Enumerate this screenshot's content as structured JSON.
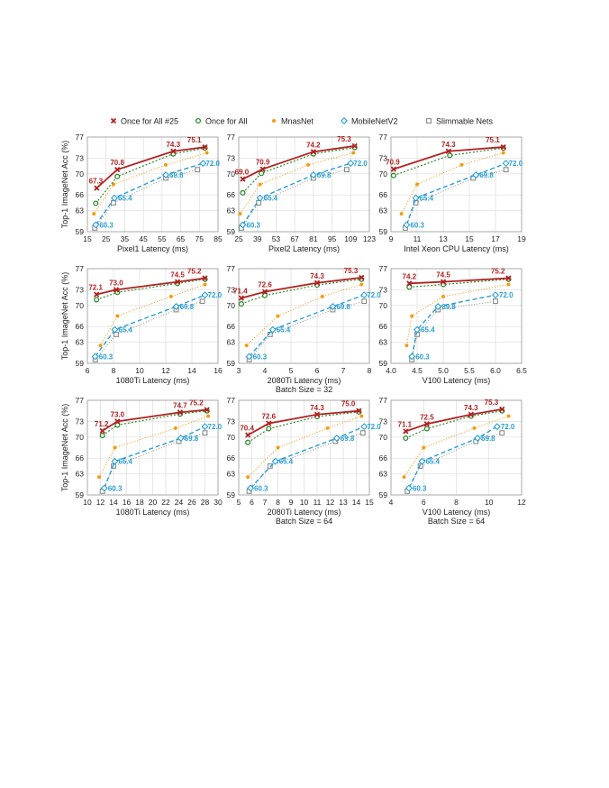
{
  "legend": [
    {
      "name": "Once for All #25",
      "color": "#b22222",
      "marker": "x"
    },
    {
      "name": "Once for All",
      "color": "#2e8b2e",
      "marker": "circle"
    },
    {
      "name": "MnasNet",
      "color": "#f39c12",
      "marker": "dot"
    },
    {
      "name": "MobileNetV2",
      "color": "#2aa0d4",
      "marker": "diamond"
    },
    {
      "name": "Slimmable Nets",
      "color": "#8c8c8c",
      "marker": "square"
    }
  ],
  "y_axis_label": "Top-1 ImageNet Acc (%)",
  "chart_data": [
    {
      "type": "line",
      "xlabel": "Pixel1 Latency (ms)",
      "sublabel": "",
      "xlim": [
        15,
        85
      ],
      "xticks": [
        15,
        25,
        35,
        45,
        55,
        65,
        75,
        85
      ],
      "ylim": [
        59,
        77
      ],
      "yticks": [
        59,
        63,
        66,
        70,
        73,
        77
      ],
      "series": [
        {
          "name": "Once for All #25",
          "x": [
            20,
            31,
            61,
            78
          ],
          "y": [
            67.3,
            70.8,
            74.3,
            75.1
          ],
          "labels": [
            "67.3",
            "70.8",
            "74.3",
            "75.1"
          ]
        },
        {
          "name": "Once for All",
          "x": [
            19.5,
            31,
            61,
            78
          ],
          "y": [
            64.4,
            69.5,
            73.8,
            74.9
          ],
          "labels": []
        },
        {
          "name": "MnasNet",
          "x": [
            18.5,
            29,
            57,
            79
          ],
          "y": [
            62.4,
            68.0,
            71.7,
            74.0
          ],
          "labels": []
        },
        {
          "name": "MobileNetV2",
          "x": [
            19.5,
            29.5,
            57,
            77
          ],
          "y": [
            60.3,
            65.4,
            69.8,
            72.0
          ],
          "labels": [
            "60.3",
            "65.4",
            "69.8",
            "72.0"
          ]
        },
        {
          "name": "Slimmable Nets",
          "x": [
            19,
            29,
            57,
            74
          ],
          "y": [
            59.7,
            64.5,
            69.2,
            70.8
          ],
          "labels": []
        }
      ]
    },
    {
      "type": "line",
      "xlabel": "Pixel2 Latency (ms)",
      "sublabel": "",
      "xlim": [
        25,
        123
      ],
      "xticks": [
        25,
        39,
        53,
        67,
        81,
        95,
        109,
        123
      ],
      "ylim": [
        59,
        77
      ],
      "yticks": [
        59,
        63,
        66,
        70,
        73,
        77
      ],
      "series": [
        {
          "name": "Once for All #25",
          "x": [
            28,
            43,
            81,
            112
          ],
          "y": [
            69.0,
            70.9,
            74.2,
            75.3
          ],
          "labels": [
            "69.0",
            "70.9",
            "74.2",
            "75.3"
          ]
        },
        {
          "name": "Once for All",
          "x": [
            28,
            42,
            81,
            112
          ],
          "y": [
            66.4,
            70.1,
            73.8,
            75.0
          ],
          "labels": []
        },
        {
          "name": "MnasNet",
          "x": [
            26,
            41,
            77,
            111
          ],
          "y": [
            62.4,
            68.0,
            71.7,
            74.0
          ],
          "labels": []
        },
        {
          "name": "MobileNetV2",
          "x": [
            28,
            41,
            81,
            109
          ],
          "y": [
            60.3,
            65.4,
            69.8,
            72.0
          ],
          "labels": [
            "60.3",
            "65.4",
            "69.8",
            "72.0"
          ]
        },
        {
          "name": "Slimmable Nets",
          "x": [
            27,
            40,
            81,
            106
          ],
          "y": [
            59.7,
            64.5,
            69.2,
            70.8
          ],
          "labels": []
        }
      ]
    },
    {
      "type": "line",
      "xlabel": "Intel Xeon CPU Latency (ms)",
      "sublabel": "",
      "xlim": [
        9,
        19
      ],
      "xticks": [
        9,
        11,
        13,
        15,
        17,
        19
      ],
      "ylim": [
        59,
        77
      ],
      "yticks": [
        59,
        63,
        66,
        70,
        73,
        77
      ],
      "series": [
        {
          "name": "Once for All #25",
          "x": [
            9.2,
            13.4,
            17.6
          ],
          "y": [
            70.9,
            74.3,
            75.1
          ],
          "labels": [
            "70.9",
            "74.3",
            "75.1"
          ]
        },
        {
          "name": "Once for All",
          "x": [
            9.2,
            13.5,
            17.6
          ],
          "y": [
            69.7,
            73.5,
            74.9
          ],
          "labels": []
        },
        {
          "name": "MnasNet",
          "x": [
            9.8,
            11.0,
            14.4,
            17.6
          ],
          "y": [
            62.4,
            68.0,
            71.7,
            74.0
          ],
          "labels": []
        },
        {
          "name": "MobileNetV2",
          "x": [
            10.2,
            10.9,
            15.5,
            17.8
          ],
          "y": [
            60.3,
            65.4,
            69.8,
            72.0
          ],
          "labels": [
            "60.3",
            "65.4",
            "69.8",
            "72.0"
          ]
        },
        {
          "name": "Slimmable Nets",
          "x": [
            10.1,
            10.9,
            15.3,
            17.8
          ],
          "y": [
            59.7,
            64.5,
            69.2,
            70.8
          ],
          "labels": []
        }
      ]
    },
    {
      "type": "line",
      "xlabel": "1080Ti Latency (ms)",
      "sublabel": "",
      "xlim": [
        6,
        16
      ],
      "xticks": [
        6,
        8,
        10,
        12,
        14,
        16
      ],
      "ylim": [
        59,
        77
      ],
      "yticks": [
        59,
        63,
        66,
        70,
        73,
        77
      ],
      "series": [
        {
          "name": "Once for All #25",
          "x": [
            6.7,
            8.2,
            12.9,
            15.0
          ],
          "y": [
            72.1,
            73.0,
            74.5,
            75.2
          ],
          "labels": [
            "72.1",
            "73.0",
            "74.5",
            "75.2"
          ]
        },
        {
          "name": "Once for All",
          "x": [
            6.7,
            8.3,
            12.9,
            15.0
          ],
          "y": [
            71.1,
            72.5,
            74.2,
            75.0
          ],
          "labels": []
        },
        {
          "name": "MnasNet",
          "x": [
            7.0,
            8.3,
            12.4,
            15.0
          ],
          "y": [
            62.4,
            68.0,
            71.7,
            74.0
          ],
          "labels": []
        },
        {
          "name": "MobileNetV2",
          "x": [
            6.6,
            8.1,
            12.8,
            15.0
          ],
          "y": [
            60.3,
            65.4,
            69.8,
            72.0
          ],
          "labels": [
            "60.3",
            "65.4",
            "69.8",
            "72.0"
          ]
        },
        {
          "name": "Slimmable Nets",
          "x": [
            6.6,
            8.2,
            12.8,
            14.8
          ],
          "y": [
            59.7,
            64.5,
            69.2,
            70.8
          ],
          "labels": []
        }
      ]
    },
    {
      "type": "line",
      "xlabel": "2080Ti Latency (ms)",
      "sublabel": "Batch Size = 32",
      "xlim": [
        3,
        8
      ],
      "xticks": [
        3,
        4,
        5,
        6,
        7,
        8
      ],
      "ylim": [
        59,
        77
      ],
      "yticks": [
        59,
        63,
        66,
        70,
        73,
        77
      ],
      "series": [
        {
          "name": "Once for All #25",
          "x": [
            3.1,
            4.0,
            6.0,
            7.7
          ],
          "y": [
            71.4,
            72.6,
            74.3,
            75.3
          ],
          "labels": [
            "71.4",
            "72.6",
            "74.3",
            "75.3"
          ]
        },
        {
          "name": "Once for All",
          "x": [
            3.1,
            4.0,
            6.0,
            7.7
          ],
          "y": [
            70.3,
            71.9,
            73.9,
            75.0
          ],
          "labels": []
        },
        {
          "name": "MnasNet",
          "x": [
            3.3,
            4.5,
            6.2,
            7.7
          ],
          "y": [
            62.4,
            68.0,
            71.7,
            74.0
          ],
          "labels": []
        },
        {
          "name": "MobileNetV2",
          "x": [
            3.4,
            4.3,
            6.6,
            7.8
          ],
          "y": [
            60.3,
            65.4,
            69.8,
            72.0
          ],
          "labels": [
            "60.3",
            "65.4",
            "69.8",
            "72.0"
          ]
        },
        {
          "name": "Slimmable Nets",
          "x": [
            3.4,
            4.2,
            6.6,
            7.8
          ],
          "y": [
            59.7,
            64.5,
            69.2,
            70.8
          ],
          "labels": []
        }
      ]
    },
    {
      "type": "line",
      "xlabel": "V100 Latency (ms)",
      "sublabel": "",
      "xlim": [
        4.0,
        6.5
      ],
      "xticks": [
        "4.0",
        "4.5",
        "5.0",
        "5.5",
        "6.0",
        "6.5"
      ],
      "ylim": [
        59,
        77
      ],
      "yticks": [
        59,
        63,
        66,
        70,
        73,
        77
      ],
      "series": [
        {
          "name": "Once for All #25",
          "x": [
            4.35,
            5.0,
            6.25
          ],
          "y": [
            74.2,
            74.5,
            75.2
          ],
          "labels": [
            "74.2",
            "74.5",
            "75.2"
          ]
        },
        {
          "name": "Once for All",
          "x": [
            4.35,
            5.0,
            6.25
          ],
          "y": [
            73.5,
            74.0,
            75.0
          ],
          "labels": []
        },
        {
          "name": "MnasNet",
          "x": [
            4.3,
            4.4,
            5.0,
            6.25
          ],
          "y": [
            62.4,
            68.0,
            71.7,
            74.0
          ],
          "labels": []
        },
        {
          "name": "MobileNetV2",
          "x": [
            4.4,
            4.5,
            4.9,
            6.0
          ],
          "y": [
            60.3,
            65.4,
            69.8,
            72.0
          ],
          "labels": [
            "60.3",
            "65.4",
            "69.8",
            "72.0"
          ]
        },
        {
          "name": "Slimmable Nets",
          "x": [
            4.4,
            4.5,
            4.9,
            6.0
          ],
          "y": [
            59.7,
            64.5,
            69.2,
            70.8
          ],
          "labels": []
        }
      ]
    },
    {
      "type": "line",
      "xlabel": "1080Ti Latency (ms)",
      "sublabel": "",
      "xlim": [
        10,
        30
      ],
      "xticks": [
        10,
        12,
        14,
        16,
        18,
        20,
        22,
        24,
        26,
        28,
        30
      ],
      "ylim": [
        59,
        77
      ],
      "yticks": [
        59,
        63,
        66,
        70,
        73,
        77
      ],
      "series": [
        {
          "name": "Once for All #25",
          "x": [
            12.3,
            14.6,
            24.2,
            28.3
          ],
          "y": [
            71.2,
            73.0,
            74.7,
            75.2
          ],
          "labels": [
            "71.2",
            "73.0",
            "74.7",
            "75.2"
          ]
        },
        {
          "name": "Once for All",
          "x": [
            12.3,
            14.6,
            24.2,
            28.3
          ],
          "y": [
            70.3,
            72.3,
            74.4,
            75.0
          ],
          "labels": []
        },
        {
          "name": "MnasNet",
          "x": [
            11.8,
            14.2,
            23.5,
            28.5
          ],
          "y": [
            62.4,
            68.0,
            71.7,
            74.0
          ],
          "labels": []
        },
        {
          "name": "MobileNetV2",
          "x": [
            12.6,
            14.2,
            24.3,
            28.0
          ],
          "y": [
            60.3,
            65.4,
            69.8,
            72.0
          ],
          "labels": [
            "60.3",
            "65.4",
            "69.8",
            "72.0"
          ]
        },
        {
          "name": "Slimmable Nets",
          "x": [
            12.3,
            14.0,
            24.0,
            28.0
          ],
          "y": [
            59.7,
            64.5,
            69.2,
            70.8
          ],
          "labels": []
        }
      ]
    },
    {
      "type": "line",
      "xlabel": "2080Ti Latency (ms)",
      "sublabel": "Batch Size = 64",
      "xlim": [
        5,
        15
      ],
      "xticks": [
        5,
        6,
        7,
        8,
        9,
        10,
        11,
        12,
        13,
        14,
        15
      ],
      "ylim": [
        59,
        77
      ],
      "yticks": [
        59,
        63,
        66,
        70,
        73,
        77
      ],
      "series": [
        {
          "name": "Once for All #25",
          "x": [
            5.7,
            7.3,
            11.0,
            14.2
          ],
          "y": [
            70.4,
            72.6,
            74.3,
            75.0
          ],
          "labels": [
            "70.4",
            "72.6",
            "74.3",
            "75.0"
          ]
        },
        {
          "name": "Once for All",
          "x": [
            5.7,
            7.3,
            11.0,
            14.2
          ],
          "y": [
            69.0,
            71.6,
            73.9,
            74.8
          ],
          "labels": []
        },
        {
          "name": "MnasNet",
          "x": [
            5.7,
            8.0,
            11.8,
            14.4
          ],
          "y": [
            62.4,
            68.0,
            71.7,
            74.0
          ],
          "labels": []
        },
        {
          "name": "MobileNetV2",
          "x": [
            5.9,
            7.8,
            12.5,
            14.6
          ],
          "y": [
            60.3,
            65.4,
            69.8,
            72.0
          ],
          "labels": [
            "60.3",
            "65.4",
            "69.8",
            "72.0"
          ]
        },
        {
          "name": "Slimmable Nets",
          "x": [
            5.8,
            7.4,
            12.4,
            14.5
          ],
          "y": [
            59.7,
            64.5,
            69.2,
            70.8
          ],
          "labels": []
        }
      ]
    },
    {
      "type": "line",
      "xlabel": "V100 Latency (ms)",
      "sublabel": "Batch Size = 64",
      "xlim": [
        4,
        12
      ],
      "xticks": [
        4,
        6,
        8,
        10,
        12
      ],
      "ylim": [
        59,
        77
      ],
      "yticks": [
        59,
        63,
        66,
        70,
        73,
        77
      ],
      "series": [
        {
          "name": "Once for All #25",
          "x": [
            4.9,
            6.2,
            8.9,
            10.8
          ],
          "y": [
            71.1,
            72.5,
            74.3,
            75.3
          ],
          "labels": [
            "71.1",
            "72.5",
            "74.3",
            "75.3"
          ]
        },
        {
          "name": "Once for All",
          "x": [
            4.9,
            6.2,
            8.9,
            10.8
          ],
          "y": [
            69.8,
            71.6,
            74.0,
            75.0
          ],
          "labels": []
        },
        {
          "name": "MnasNet",
          "x": [
            4.8,
            6.0,
            9.1,
            11.2
          ],
          "y": [
            62.4,
            68.0,
            71.7,
            74.0
          ],
          "labels": []
        },
        {
          "name": "MobileNetV2",
          "x": [
            5.1,
            5.9,
            9.3,
            10.5
          ],
          "y": [
            60.3,
            65.4,
            69.8,
            72.0
          ],
          "labels": [
            "60.3",
            "65.4",
            "69.8",
            "72.0"
          ]
        },
        {
          "name": "Slimmable Nets",
          "x": [
            5.0,
            5.8,
            9.2,
            10.8
          ],
          "y": [
            59.7,
            64.5,
            69.2,
            70.8
          ],
          "labels": []
        }
      ]
    }
  ]
}
